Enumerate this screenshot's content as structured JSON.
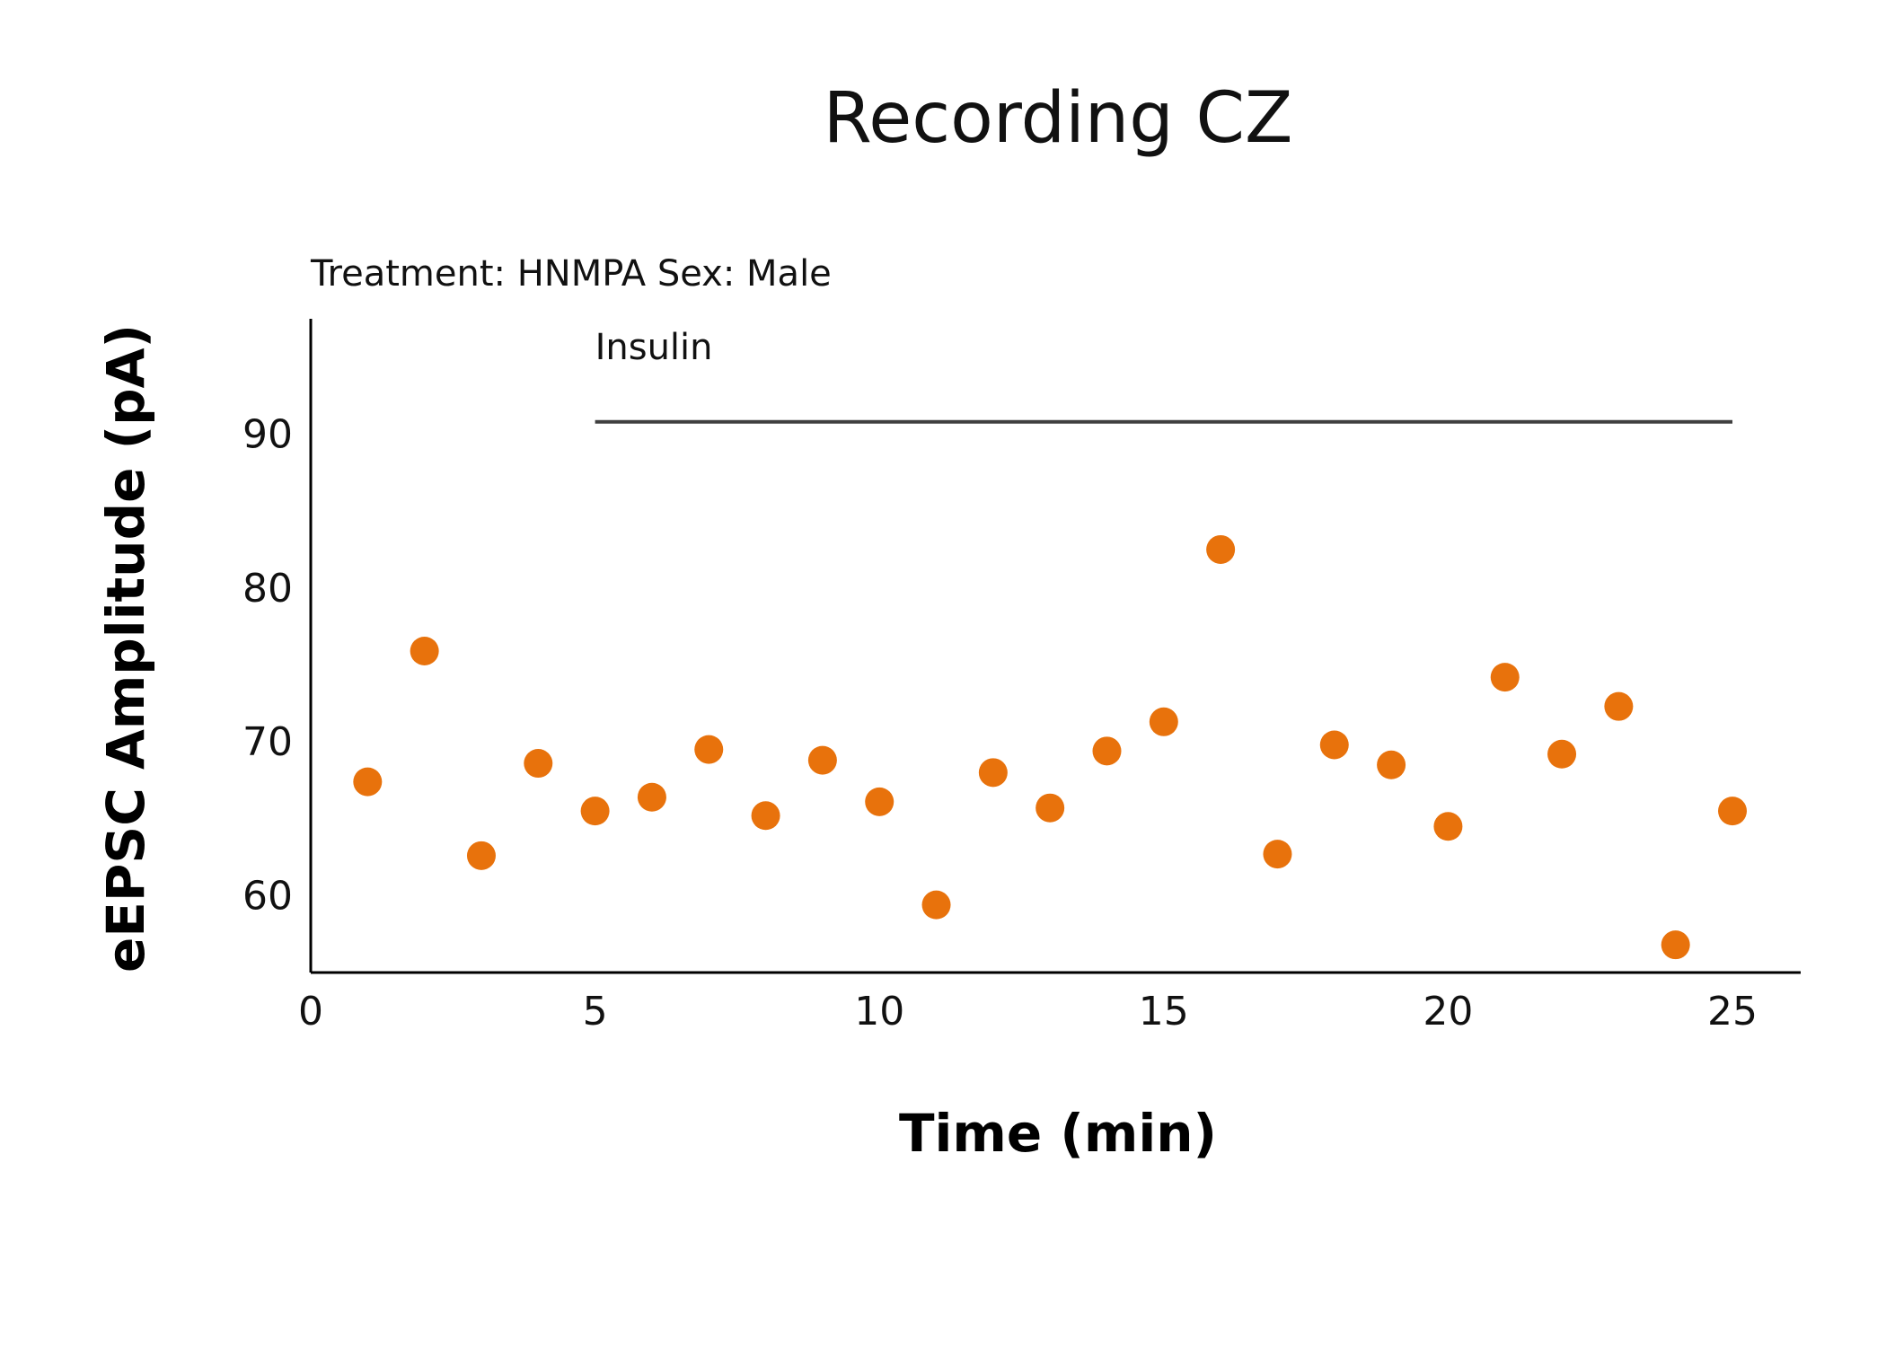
{
  "chart_data": {
    "type": "scatter",
    "title": "Recording CZ",
    "subtitle": "Treatment: HNMPA  Sex: Male",
    "xlabel": "Time (min)",
    "ylabel": "eEPSC Amplitude (pA)",
    "xlim": [
      0,
      26.2
    ],
    "ylim": [
      55,
      97.5
    ],
    "xticks": [
      0,
      5,
      10,
      15,
      20,
      25
    ],
    "yticks": [
      60,
      70,
      80,
      90
    ],
    "grid": false,
    "legend": "none",
    "series": [
      {
        "color": "#E8720C",
        "x": [
          1,
          2,
          3,
          4,
          5,
          6,
          7,
          8,
          9,
          10,
          11,
          12,
          13,
          14,
          15,
          16,
          17,
          18,
          19,
          20,
          21,
          22,
          23,
          24,
          25
        ],
        "y": [
          67.4,
          75.9,
          62.6,
          68.6,
          65.5,
          66.4,
          69.5,
          65.2,
          68.8,
          66.1,
          59.4,
          68.0,
          65.7,
          69.4,
          71.3,
          82.5,
          62.7,
          69.8,
          68.5,
          64.5,
          74.2,
          69.2,
          72.3,
          56.8,
          65.5
        ]
      }
    ],
    "annotations": [
      {
        "text": "Insulin",
        "x_start": 5,
        "x_end": 25,
        "y": 90.8,
        "line_color": "#404040"
      }
    ]
  }
}
